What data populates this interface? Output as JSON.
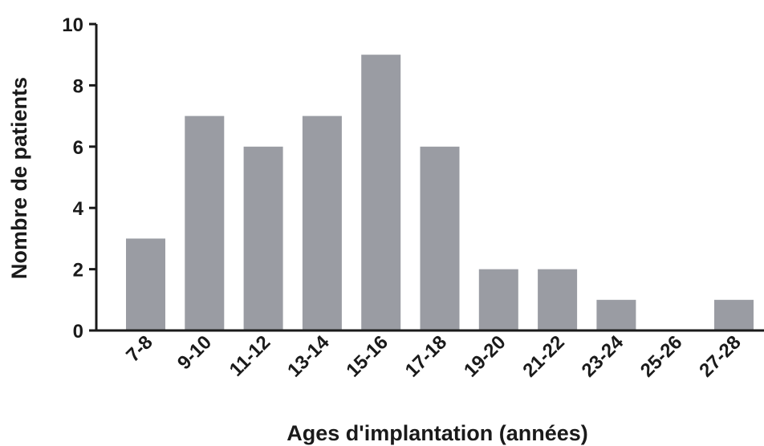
{
  "chart_data": {
    "type": "bar",
    "categories": [
      "7-8",
      "9-10",
      "11-12",
      "13-14",
      "15-16",
      "17-18",
      "19-20",
      "21-22",
      "23-24",
      "25-26",
      "27-28"
    ],
    "values": [
      3,
      7,
      6,
      7,
      9,
      6,
      2,
      2,
      1,
      0,
      1
    ],
    "title": "",
    "xlabel": "Ages d'implantation (années)",
    "ylabel": "Nombre de patients",
    "ylim": [
      0,
      10
    ],
    "yticks": [
      0,
      2,
      4,
      6,
      8,
      10
    ],
    "grid": false,
    "legend": "none",
    "bar_color": "#9a9ca3",
    "axis_color": "#1a1a1a"
  }
}
